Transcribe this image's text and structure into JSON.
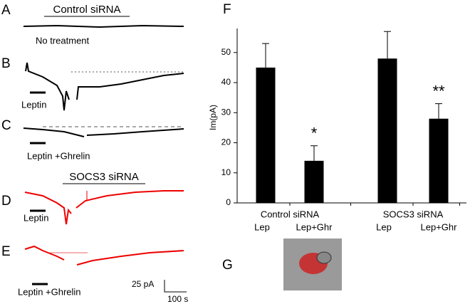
{
  "panels": {
    "A": {
      "label": "A",
      "title": "Control siRNA",
      "note": "No treatment"
    },
    "B": {
      "label": "B",
      "stimulus": "Leptin"
    },
    "C": {
      "label": "C",
      "stimulus": "Leptin +Ghrelin"
    },
    "D": {
      "label": "D",
      "title": "SOCS3 siRNA",
      "stimulus": "Leptin"
    },
    "E": {
      "label": "E",
      "stimulus": "Leptin +Ghrelin"
    },
    "scale": {
      "current": "25 pA",
      "time": "100 s"
    },
    "F": {
      "label": "F"
    },
    "G": {
      "label": "G"
    }
  },
  "chart_data": {
    "type": "bar",
    "ylabel": "Im(pA)",
    "groups": [
      "Control siRNA",
      "SOCS3 siRNA"
    ],
    "categories": [
      "Lep",
      "Lep+Ghr",
      "Lep",
      "Lep+Ghr"
    ],
    "values": [
      45,
      14,
      48,
      28
    ],
    "errors": [
      8,
      5,
      9,
      5
    ],
    "annotations": [
      null,
      "*",
      null,
      "**"
    ],
    "color": "#000000",
    "ylim": [
      0,
      58
    ],
    "yticks": [
      0,
      10,
      20,
      30,
      40,
      50
    ],
    "grid": false
  }
}
